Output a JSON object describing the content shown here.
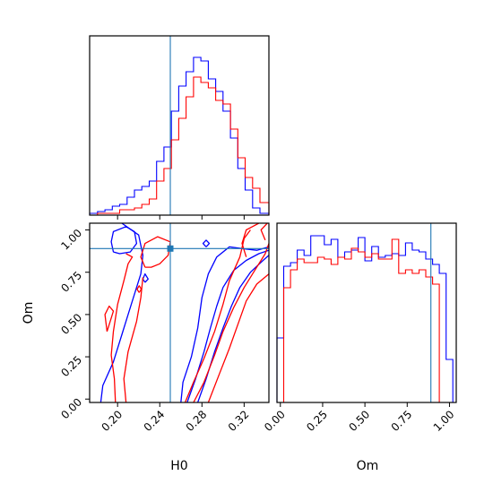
{
  "colors": {
    "series_a": "#0000ff",
    "series_b": "#ff0000",
    "truth": "#1f77b4",
    "frame": "#000000"
  },
  "chart_data": [
    {
      "type": "histogram",
      "panel": "H0 marginal",
      "grid": false,
      "x_range": [
        0.1735,
        0.3435
      ],
      "x_ticks": [
        0.2,
        0.24,
        0.28,
        0.32
      ],
      "truth": 0.25,
      "bin_edges": [
        0.1735,
        0.181,
        0.188,
        0.195,
        0.202,
        0.209,
        0.216,
        0.223,
        0.23,
        0.237,
        0.244,
        0.251,
        0.258,
        0.265,
        0.272,
        0.279,
        0.286,
        0.293,
        0.3,
        0.307,
        0.314,
        0.321,
        0.328,
        0.335,
        0.3435
      ],
      "series": [
        {
          "color": "#0000ff",
          "values": [
            0.01,
            0.02,
            0.03,
            0.05,
            0.06,
            0.1,
            0.14,
            0.16,
            0.19,
            0.3,
            0.38,
            0.58,
            0.72,
            0.8,
            0.88,
            0.86,
            0.76,
            0.69,
            0.58,
            0.43,
            0.26,
            0.14,
            0.04,
            0.01
          ]
        },
        {
          "color": "#ff0000",
          "values": [
            0.0,
            0.01,
            0.01,
            0.01,
            0.03,
            0.03,
            0.04,
            0.06,
            0.09,
            0.19,
            0.26,
            0.42,
            0.54,
            0.66,
            0.77,
            0.74,
            0.71,
            0.64,
            0.62,
            0.48,
            0.32,
            0.21,
            0.15,
            0.07
          ]
        }
      ]
    },
    {
      "type": "contour",
      "panel": "H0 vs Om joint",
      "xlabel": "H0",
      "ylabel": "Om",
      "x_range": [
        0.1735,
        0.3435
      ],
      "y_range": [
        -0.02,
        1.04
      ],
      "x_ticks": [
        0.2,
        0.24,
        0.28,
        0.32
      ],
      "y_ticks": [
        0.0,
        0.25,
        0.5,
        0.75,
        1.0
      ],
      "truth": {
        "x": 0.25,
        "y": 0.89
      },
      "series": [
        {
          "color": "#0000ff",
          "contours": [
            [
              [
                0.184,
                -0.02
              ],
              [
                0.186,
                0.08
              ],
              [
                0.196,
                0.22
              ],
              [
                0.204,
                0.38
              ],
              [
                0.21,
                0.5
              ],
              [
                0.216,
                0.62
              ],
              [
                0.222,
                0.74
              ],
              [
                0.224,
                0.85
              ],
              [
                0.22,
                0.97
              ],
              [
                0.204,
                1.04
              ]
            ],
            [
              [
                0.26,
                -0.02
              ],
              [
                0.262,
                0.1
              ],
              [
                0.27,
                0.25
              ],
              [
                0.276,
                0.42
              ],
              [
                0.28,
                0.6
              ],
              [
                0.286,
                0.74
              ],
              [
                0.294,
                0.84
              ],
              [
                0.306,
                0.9
              ],
              [
                0.318,
                0.89
              ],
              [
                0.332,
                0.88
              ],
              [
                0.3435,
                0.9
              ]
            ],
            [
              [
                0.266,
                -0.02
              ],
              [
                0.274,
                0.12
              ],
              [
                0.282,
                0.28
              ],
              [
                0.288,
                0.42
              ],
              [
                0.294,
                0.55
              ],
              [
                0.3,
                0.66
              ],
              [
                0.31,
                0.76
              ],
              [
                0.322,
                0.82
              ],
              [
                0.334,
                0.86
              ],
              [
                0.3435,
                0.88
              ]
            ],
            [
              [
                0.276,
                -0.02
              ],
              [
                0.284,
                0.12
              ],
              [
                0.292,
                0.28
              ],
              [
                0.3,
                0.42
              ],
              [
                0.308,
                0.55
              ],
              [
                0.316,
                0.66
              ],
              [
                0.326,
                0.75
              ],
              [
                0.338,
                0.82
              ],
              [
                0.3435,
                0.85
              ]
            ],
            [
              [
                0.196,
                0.87
              ],
              [
                0.194,
                0.93
              ],
              [
                0.196,
                0.99
              ],
              [
                0.208,
                1.02
              ],
              [
                0.216,
                0.99
              ],
              [
                0.218,
                0.92
              ],
              [
                0.212,
                0.87
              ],
              [
                0.202,
                0.86
              ],
              [
                0.196,
                0.87
              ]
            ],
            [
              [
                0.226,
                0.69
              ],
              [
                0.229,
                0.71
              ],
              [
                0.226,
                0.74
              ],
              [
                0.224,
                0.71
              ],
              [
                0.226,
                0.69
              ]
            ],
            [
              [
                0.284,
                0.9
              ],
              [
                0.287,
                0.92
              ],
              [
                0.284,
                0.94
              ],
              [
                0.281,
                0.92
              ],
              [
                0.284,
                0.9
              ]
            ]
          ]
        },
        {
          "color": "#ff0000",
          "contours": [
            [
              [
                0.19,
                0.4
              ],
              [
                0.188,
                0.5
              ],
              [
                0.192,
                0.55
              ],
              [
                0.196,
                0.52
              ],
              [
                0.192,
                0.44
              ],
              [
                0.19,
                0.4
              ]
            ],
            [
              [
                0.198,
                -0.02
              ],
              [
                0.197,
                0.12
              ],
              [
                0.194,
                0.26
              ],
              [
                0.196,
                0.4
              ],
              [
                0.2,
                0.56
              ],
              [
                0.206,
                0.7
              ],
              [
                0.21,
                0.8
              ],
              [
                0.214,
                0.84
              ],
              [
                0.208,
                0.86
              ]
            ],
            [
              [
                0.208,
                -0.02
              ],
              [
                0.206,
                0.12
              ],
              [
                0.21,
                0.28
              ],
              [
                0.218,
                0.46
              ],
              [
                0.222,
                0.6
              ],
              [
                0.224,
                0.72
              ]
            ],
            [
              [
                0.226,
                0.78
              ],
              [
                0.222,
                0.84
              ],
              [
                0.226,
                0.92
              ],
              [
                0.238,
                0.96
              ],
              [
                0.25,
                0.93
              ],
              [
                0.248,
                0.85
              ],
              [
                0.24,
                0.8
              ],
              [
                0.232,
                0.78
              ],
              [
                0.226,
                0.78
              ]
            ],
            [
              [
                0.264,
                -0.02
              ],
              [
                0.272,
                0.1
              ],
              [
                0.282,
                0.24
              ],
              [
                0.292,
                0.4
              ],
              [
                0.3,
                0.56
              ],
              [
                0.306,
                0.7
              ],
              [
                0.316,
                0.84
              ],
              [
                0.32,
                0.95
              ],
              [
                0.326,
                1.0
              ]
            ],
            [
              [
                0.272,
                -0.02
              ],
              [
                0.282,
                0.1
              ],
              [
                0.292,
                0.26
              ],
              [
                0.3,
                0.4
              ],
              [
                0.31,
                0.54
              ],
              [
                0.32,
                0.66
              ],
              [
                0.33,
                0.76
              ],
              [
                0.34,
                0.86
              ],
              [
                0.3435,
                0.92
              ]
            ],
            [
              [
                0.286,
                -0.02
              ],
              [
                0.296,
                0.14
              ],
              [
                0.306,
                0.3
              ],
              [
                0.314,
                0.44
              ],
              [
                0.322,
                0.58
              ],
              [
                0.332,
                0.68
              ],
              [
                0.3435,
                0.74
              ]
            ],
            [
              [
                0.322,
                0.84
              ],
              [
                0.318,
                0.92
              ],
              [
                0.322,
                1.0
              ],
              [
                0.334,
                1.04
              ]
            ],
            [
              [
                0.34,
                0.94
              ],
              [
                0.336,
                1.0
              ],
              [
                0.342,
                1.04
              ]
            ],
            [
              [
                0.2205,
                0.63
              ],
              [
                0.2225,
                0.65
              ],
              [
                0.2205,
                0.67
              ],
              [
                0.2185,
                0.65
              ],
              [
                0.2205,
                0.63
              ]
            ]
          ]
        }
      ]
    },
    {
      "type": "histogram",
      "panel": "Om marginal",
      "xlabel": "Om",
      "grid": false,
      "x_range": [
        -0.02,
        1.04
      ],
      "x_ticks": [
        0.0,
        0.25,
        0.5,
        0.75,
        1.0
      ],
      "truth": 0.89,
      "bin_edges": [
        -0.02,
        0.02,
        0.06,
        0.1,
        0.14,
        0.18,
        0.22,
        0.26,
        0.3,
        0.34,
        0.38,
        0.42,
        0.46,
        0.5,
        0.54,
        0.58,
        0.62,
        0.66,
        0.7,
        0.74,
        0.78,
        0.82,
        0.86,
        0.9,
        0.94,
        0.98,
        1.02
      ],
      "series": [
        {
          "color": "#0000ff",
          "values": [
            0.36,
            0.76,
            0.78,
            0.85,
            0.82,
            0.93,
            0.93,
            0.88,
            0.91,
            0.81,
            0.84,
            0.85,
            0.92,
            0.79,
            0.87,
            0.81,
            0.82,
            0.83,
            0.82,
            0.89,
            0.85,
            0.84,
            0.8,
            0.77,
            0.72,
            0.24
          ]
        },
        {
          "color": "#ff0000",
          "values": [
            0.0,
            0.64,
            0.74,
            0.8,
            0.78,
            0.78,
            0.81,
            0.8,
            0.77,
            0.81,
            0.8,
            0.86,
            0.84,
            0.81,
            0.83,
            0.8,
            0.8,
            0.91,
            0.72,
            0.74,
            0.72,
            0.74,
            0.7,
            0.66,
            0.0,
            0.0
          ]
        }
      ]
    }
  ]
}
